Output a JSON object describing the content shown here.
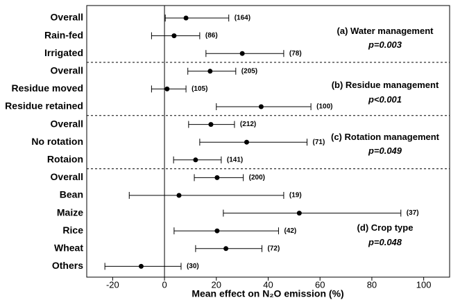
{
  "chart_data": {
    "type": "forest",
    "xlabel": "Mean effect on N₂O emission (%)",
    "xlim": [
      -30,
      110
    ],
    "xticks": [
      -20,
      0,
      20,
      40,
      60,
      80,
      100
    ],
    "color": "#000000",
    "groups": [
      {
        "title": "(a) Water management",
        "p": "p=0.003",
        "rows": [
          {
            "label": "Overall",
            "value": 8.3,
            "low": 0.3,
            "high": 24.8,
            "n": "(164)"
          },
          {
            "label": "Rain-fed",
            "value": 3.7,
            "low": -5,
            "high": 13.6,
            "n": "(86)"
          },
          {
            "label": "Irrigated",
            "value": 30,
            "low": 16,
            "high": 46,
            "n": "(78)"
          }
        ]
      },
      {
        "title": "(b) Residue management",
        "p": "p<0.001",
        "rows": [
          {
            "label": "Overall",
            "value": 17.6,
            "low": 9,
            "high": 27.5,
            "n": "(205)"
          },
          {
            "label": "Residue moved",
            "value": 1,
            "low": -5,
            "high": 8.3,
            "n": "(105)"
          },
          {
            "label": "Residue retained",
            "value": 37.3,
            "low": 20,
            "high": 56.5,
            "n": "(100)"
          }
        ]
      },
      {
        "title": "(c) Rotation management",
        "p": "p=0.049",
        "rows": [
          {
            "label": "Overall",
            "value": 17.9,
            "low": 9.3,
            "high": 27,
            "n": "(212)"
          },
          {
            "label": "No rotation",
            "value": 31.7,
            "low": 13.6,
            "high": 55,
            "n": "(71)"
          },
          {
            "label": "Rotaion",
            "value": 12,
            "low": 3.5,
            "high": 21.9,
            "n": "(141)"
          }
        ]
      },
      {
        "title": "(d) Crop type",
        "p": "p=0.048",
        "rows": [
          {
            "label": "Overall",
            "value": 20.3,
            "low": 11.5,
            "high": 30.4,
            "n": "(200)"
          },
          {
            "label": "Bean",
            "value": 5.6,
            "low": -13.6,
            "high": 46,
            "n": "(19)"
          },
          {
            "label": "Maize",
            "value": 52,
            "low": 22.7,
            "high": 91.2,
            "n": "(37)"
          },
          {
            "label": "Rice",
            "value": 20.3,
            "low": 3.7,
            "high": 44,
            "n": "(42)"
          },
          {
            "label": "Wheat",
            "value": 23.7,
            "low": 12,
            "high": 37.6,
            "n": "(72)"
          },
          {
            "label": "Others",
            "value": -9,
            "low": -23,
            "high": 6.4,
            "n": "(30)"
          }
        ]
      }
    ]
  }
}
